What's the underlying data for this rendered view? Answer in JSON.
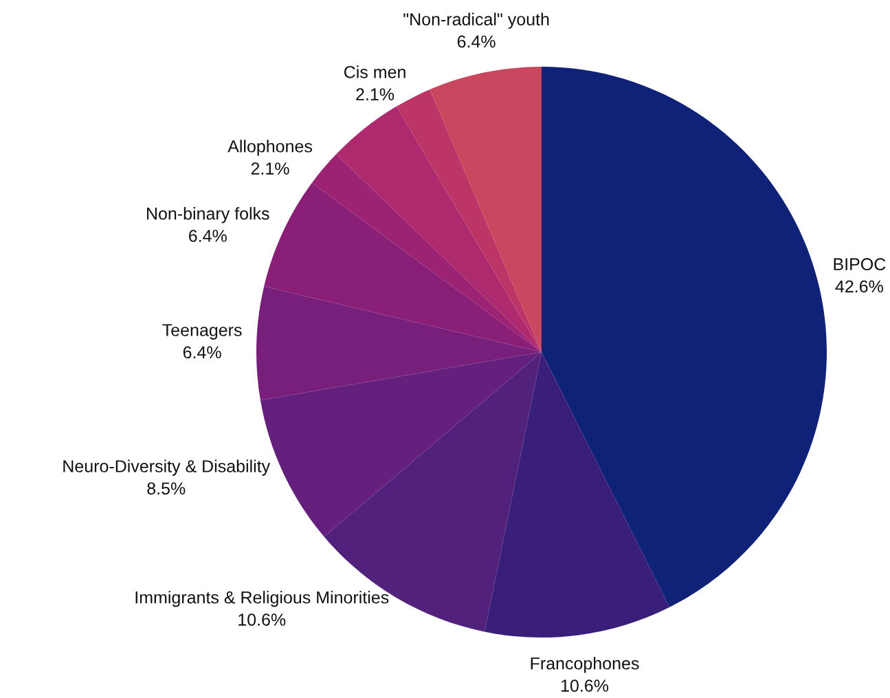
{
  "chart_data": {
    "type": "pie",
    "categories": [
      "BIPOC",
      "Francophones",
      "Immigrants & Religious Minorities",
      "Neuro-Diversity & Disability",
      "Teenagers",
      "Non-binary folks",
      "Allophones",
      null,
      "Cis men",
      "\"Non-radical\" youth"
    ],
    "values": [
      42.6,
      10.6,
      10.6,
      8.5,
      6.4,
      6.4,
      2.1,
      4.3,
      2.1,
      6.4
    ],
    "value_labels": [
      "42.6%",
      "10.6%",
      "10.6%",
      "8.5%",
      "6.4%",
      "6.4%",
      "2.1%",
      null,
      "2.1%",
      "6.4%"
    ],
    "colors": [
      "#0f2277",
      "#3a1f7a",
      "#51217c",
      "#64207c",
      "#771f7a",
      "#8a1f78",
      "#9c2274",
      "#ae2a6e",
      "#bd3567",
      "#c9485f"
    ]
  }
}
